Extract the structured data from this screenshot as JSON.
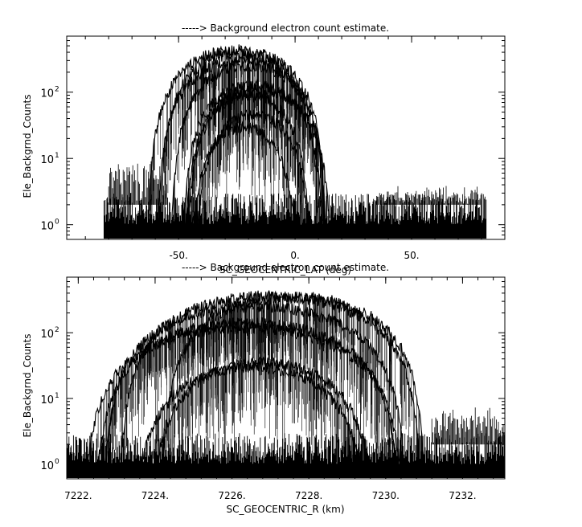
{
  "chart_data": [
    {
      "type": "line",
      "title": "-----> Background electron count estimate.",
      "xlabel": "SC_GEOCENTRIC_LAT (deg)",
      "ylabel": "Ele_Backgrnd_Counts",
      "xlim": [
        -98,
        90
      ],
      "ylim": [
        0.6,
        700
      ],
      "yscale": "log",
      "grid": false,
      "x_ticks": [
        -50,
        0,
        50
      ],
      "x_tick_labels": [
        "-50.",
        "0.",
        "50."
      ],
      "y_ticks": [
        1,
        10,
        100
      ],
      "y_tick_labels": [
        "10",
        "10",
        "10"
      ],
      "y_tick_exponents": [
        "0",
        "1",
        "2"
      ],
      "data_range_x": [
        -82,
        82
      ],
      "noise_floor": [
        1,
        3
      ],
      "arcs": [
        {
          "center": -25,
          "half_width": 38,
          "peak": 430
        },
        {
          "center": -24,
          "half_width": 34,
          "peak": 380
        },
        {
          "center": -23,
          "half_width": 36,
          "peak": 300
        },
        {
          "center": -20,
          "half_width": 33,
          "peak": 250
        },
        {
          "center": -18,
          "half_width": 30,
          "peak": 130
        },
        {
          "center": -16,
          "half_width": 31,
          "peak": 110
        },
        {
          "center": -20,
          "half_width": 26,
          "peak": 90
        },
        {
          "center": -18,
          "half_width": 24,
          "peak": 45
        },
        {
          "center": -22,
          "half_width": 22,
          "peak": 30
        }
      ],
      "side_bursts": [
        {
          "x_range": [
            -80,
            -55
          ],
          "level": 10
        },
        {
          "x_range": [
            35,
            80
          ],
          "level": 4
        }
      ]
    },
    {
      "type": "line",
      "title": "-----> Background electron count estimate.",
      "xlabel": "SC_GEOCENTRIC_R (km)",
      "ylabel": "Ele_Backgrnd_Counts",
      "xlim": [
        7221.7,
        7233.1
      ],
      "ylim": [
        0.6,
        700
      ],
      "yscale": "log",
      "grid": false,
      "x_ticks": [
        7222,
        7224,
        7226,
        7228,
        7230,
        7232
      ],
      "x_tick_labels": [
        "7222.",
        "7224.",
        "7226.",
        "7228.",
        "7230.",
        "7232."
      ],
      "y_ticks": [
        1,
        10,
        100
      ],
      "y_tick_labels": [
        "10",
        "10",
        "10"
      ],
      "y_tick_exponents": [
        "0",
        "1",
        "2"
      ],
      "data_range_x": [
        7221.7,
        7233.1
      ],
      "noise_floor": [
        1,
        3
      ],
      "arcs": [
        {
          "center": 7227.0,
          "half_width": 3.9,
          "peak": 360
        },
        {
          "center": 7227.6,
          "half_width": 3.4,
          "peak": 350
        },
        {
          "center": 7226.6,
          "half_width": 3.9,
          "peak": 250
        },
        {
          "center": 7226.4,
          "half_width": 3.9,
          "peak": 140
        },
        {
          "center": 7226.3,
          "half_width": 4.1,
          "peak": 120
        },
        {
          "center": 7226.8,
          "half_width": 2.8,
          "peak": 35
        },
        {
          "center": 7226.5,
          "half_width": 2.9,
          "peak": 30
        }
      ],
      "side_bursts": [
        {
          "x_range": [
            7231.2,
            7233.1
          ],
          "level": 8
        }
      ]
    }
  ]
}
